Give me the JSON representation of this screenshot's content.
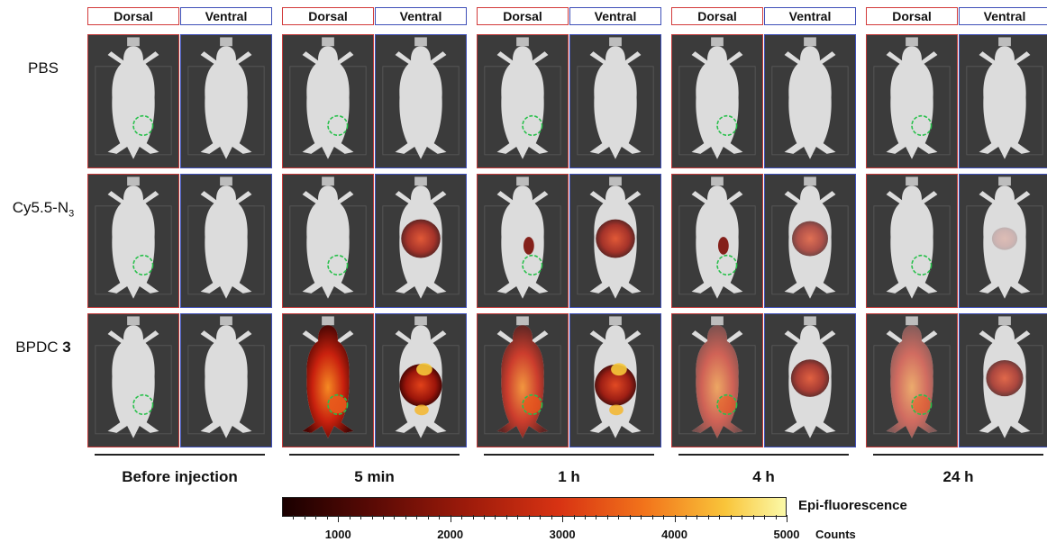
{
  "view_headers": {
    "dorsal": "Dorsal",
    "ventral": "Ventral"
  },
  "rows": [
    {
      "label": "PBS",
      "sub": "",
      "bold_suffix": ""
    },
    {
      "label": "Cy5.5-N",
      "sub": "3",
      "bold_suffix": ""
    },
    {
      "label": "BPDC ",
      "sub": "",
      "bold_suffix": "3"
    }
  ],
  "timepoints": [
    "Before injection",
    "5 min",
    "1 h",
    "4 h",
    "24 h"
  ],
  "colorbar": {
    "title": "Epi-fluorescence",
    "unit": "Counts",
    "ticks": [
      "1000",
      "2000",
      "3000",
      "4000",
      "5000"
    ],
    "gradient_colors": [
      "#1a0000",
      "#5a0a05",
      "#9b1a0a",
      "#d83313",
      "#f2741b",
      "#f9c53a",
      "#fbf9a8"
    ]
  },
  "colors": {
    "dorsal_border": "#c23a3a",
    "ventral_border": "#3f4fb8",
    "tumor_circle": "#27c04a"
  },
  "signal": {
    "comment_free": true,
    "pbs": [
      [
        0,
        0
      ],
      [
        0,
        0
      ],
      [
        0,
        0
      ],
      [
        0,
        0
      ],
      [
        0,
        0
      ]
    ],
    "cy55": [
      [
        0,
        0
      ],
      [
        0,
        0.85
      ],
      [
        0.4,
        0.85
      ],
      [
        0.3,
        0.7
      ],
      [
        0,
        0.2
      ]
    ],
    "bpdc": [
      [
        0,
        0
      ],
      [
        0.9,
        1.0
      ],
      [
        0.75,
        0.95
      ],
      [
        0.55,
        0.8
      ],
      [
        0.5,
        0.75
      ]
    ]
  }
}
